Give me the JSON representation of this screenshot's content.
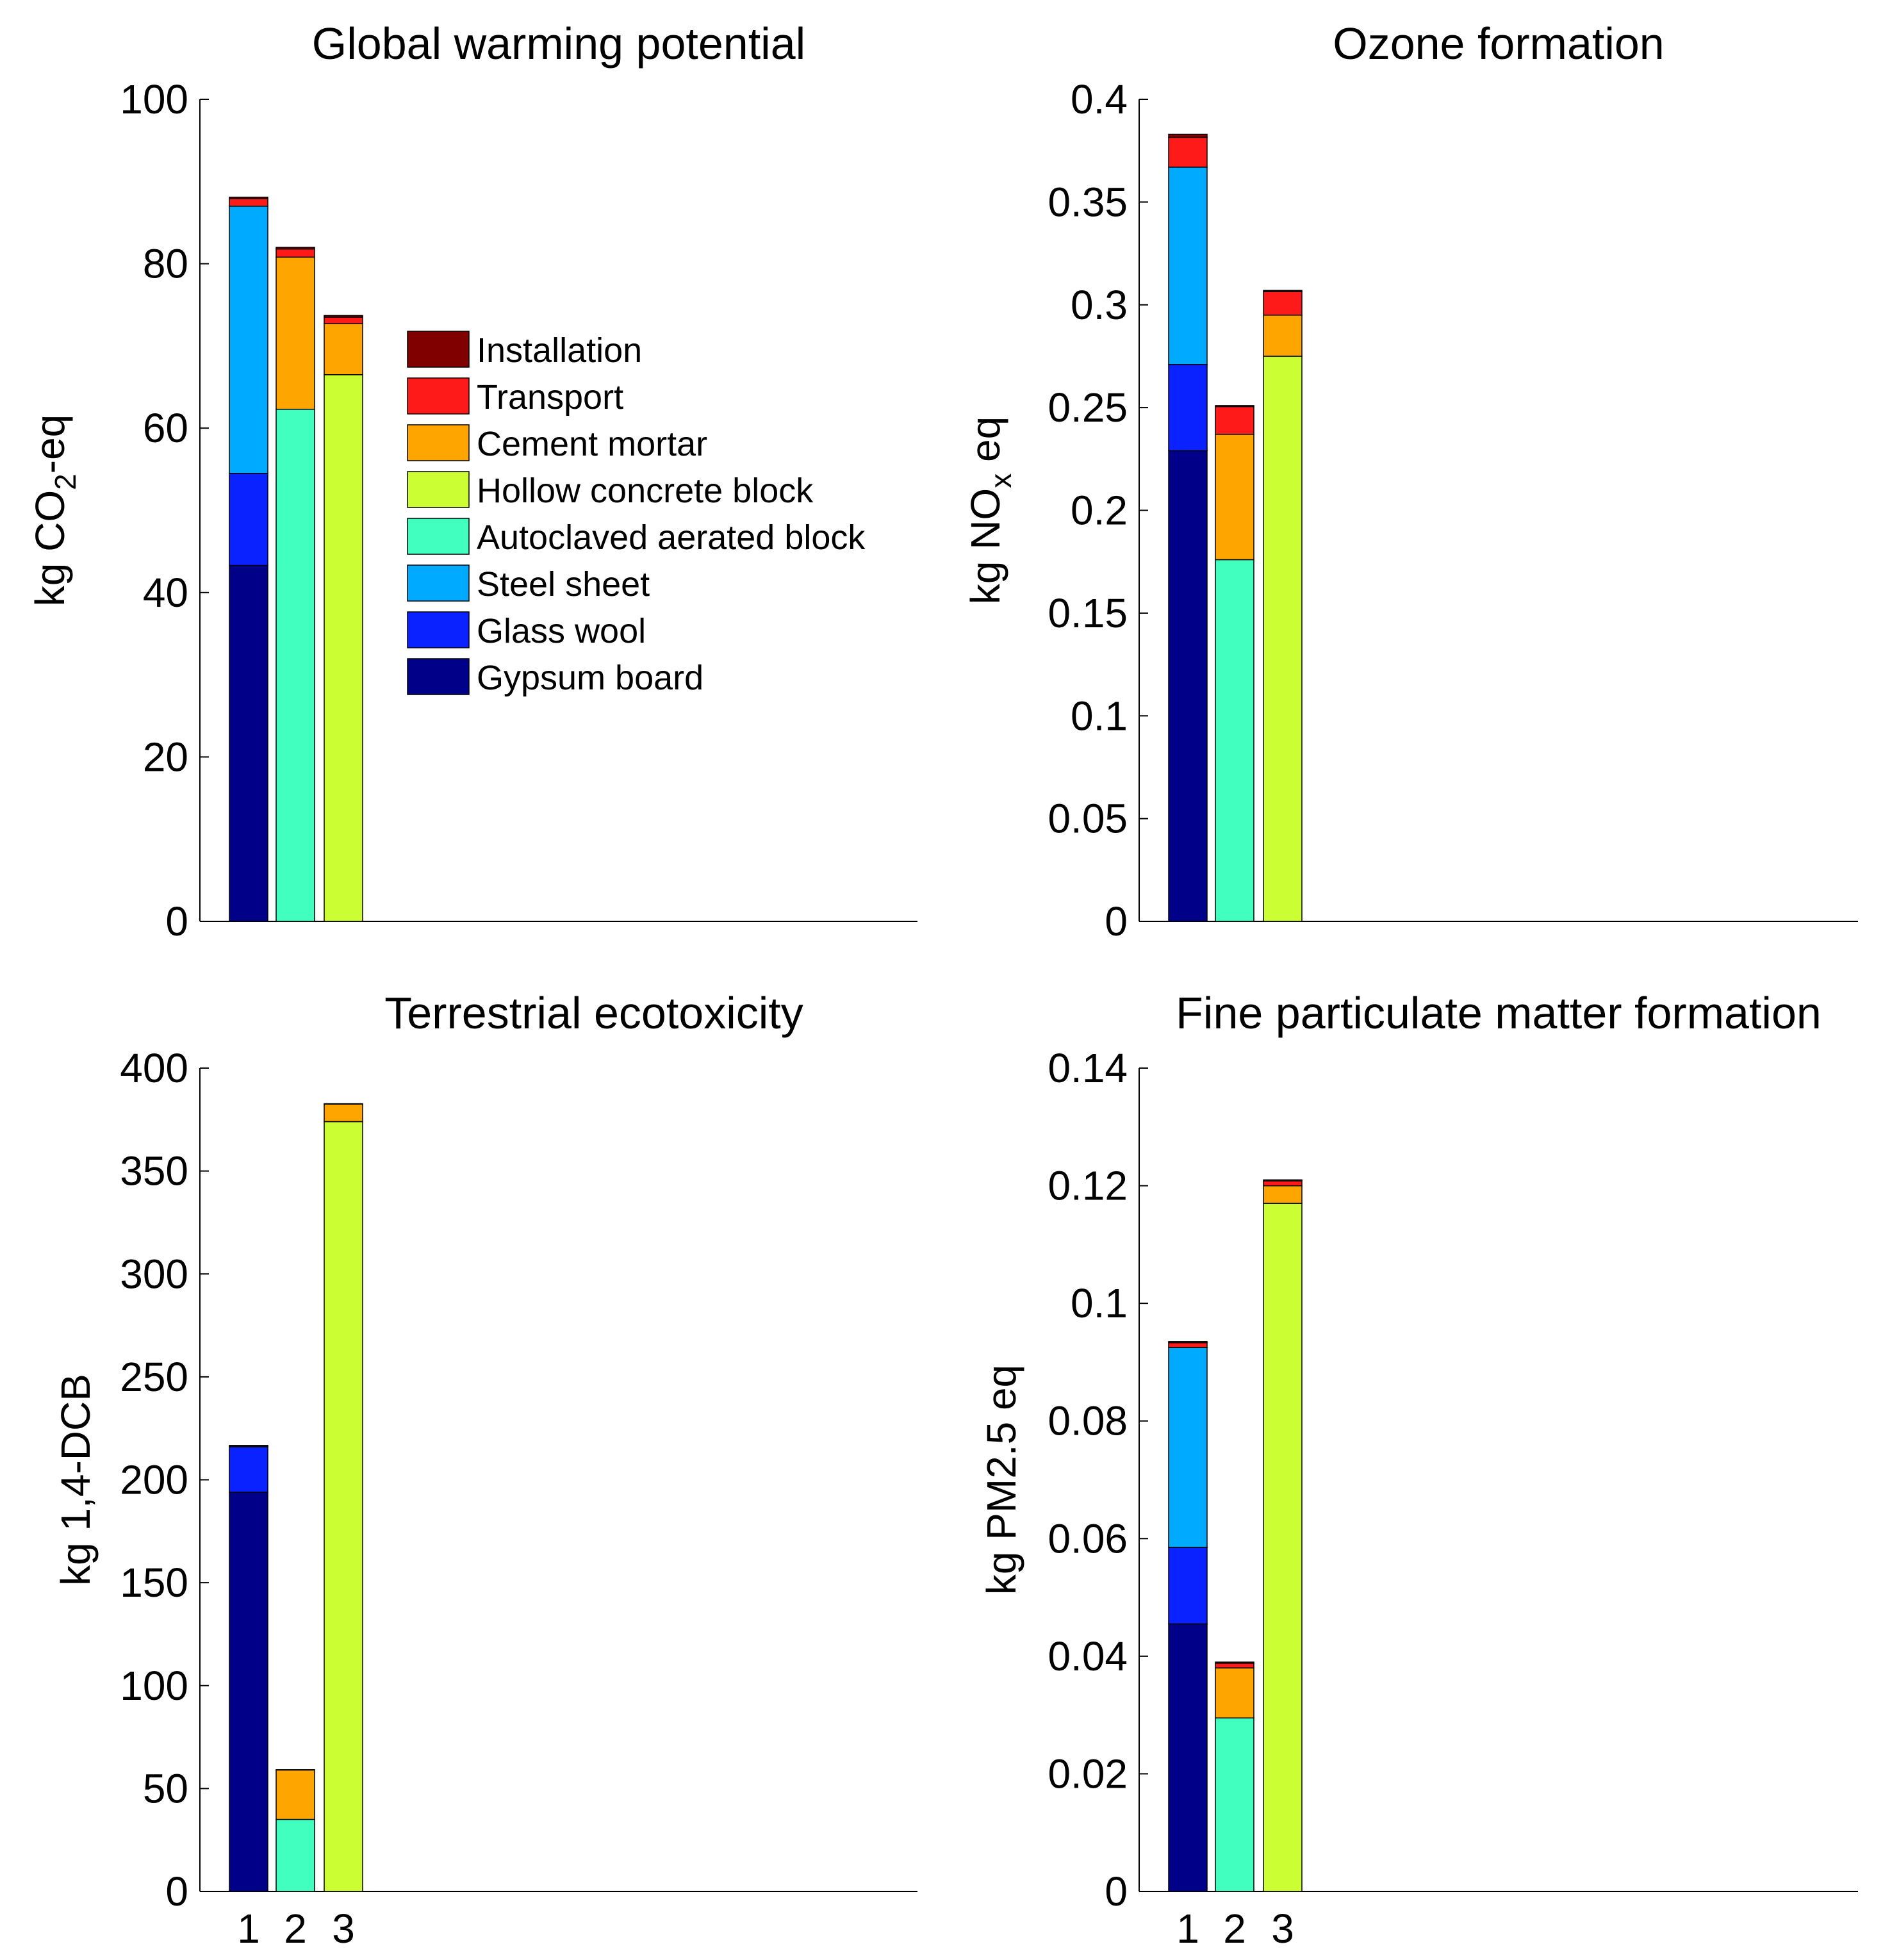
{
  "colors": {
    "Installation": "#800000",
    "Transport": "#ff1a1a",
    "Cement mortar": "#ffa500",
    "Hollow concrete block": "#ccff33",
    "Autoclaved aerated block": "#40ffbf",
    "Steel sheet": "#00aaff",
    "Glass wool": "#0a22ff",
    "Gypsum board": "#000088"
  },
  "legend": {
    "entries": [
      "Installation",
      "Transport",
      "Cement mortar",
      "Hollow concrete block",
      "Autoclaved aerated block",
      "Steel sheet",
      "Glass wool",
      "Gypsum board"
    ]
  },
  "chart_data": [
    {
      "type": "bar",
      "stacked": true,
      "title": "Global warming potential",
      "ylabel": "kg CO",
      "ylabel_sub": "2",
      "ylabel_tail": "-eq",
      "ylim": [
        0,
        100
      ],
      "yticks": [
        0,
        20,
        40,
        60,
        80,
        100
      ],
      "ytick_labels": [
        "0",
        "20",
        "40",
        "60",
        "80",
        "100"
      ],
      "categories": [
        "1",
        "2",
        "3"
      ],
      "show_xticks": false,
      "legend_position": "inside-upper-right",
      "series": [
        {
          "name": "Gypsum board",
          "values": [
            43.3,
            0,
            0
          ]
        },
        {
          "name": "Glass wool",
          "values": [
            11.2,
            0,
            0
          ]
        },
        {
          "name": "Steel sheet",
          "values": [
            32.5,
            0,
            0
          ]
        },
        {
          "name": "Autoclaved aerated block",
          "values": [
            0,
            62.3,
            0
          ]
        },
        {
          "name": "Hollow concrete block",
          "values": [
            0,
            0,
            66.5
          ]
        },
        {
          "name": "Cement mortar",
          "values": [
            0,
            18.5,
            6.2
          ]
        },
        {
          "name": "Transport",
          "values": [
            0.9,
            1.0,
            0.8
          ]
        },
        {
          "name": "Installation",
          "values": [
            0.2,
            0.2,
            0.2
          ]
        }
      ]
    },
    {
      "type": "bar",
      "stacked": true,
      "title": "Ozone formation",
      "ylabel": "kg NO",
      "ylabel_sub": "x",
      "ylabel_tail": " eq",
      "ylim": [
        0,
        0.4
      ],
      "yticks": [
        0,
        0.05,
        0.1,
        0.15,
        0.2,
        0.25,
        0.3,
        0.35,
        0.4
      ],
      "ytick_labels": [
        "0",
        "0.05",
        "0.1",
        "0.15",
        "0.2",
        "0.25",
        "0.3",
        "0.35",
        "0.4"
      ],
      "categories": [
        "1",
        "2",
        "3"
      ],
      "show_xticks": false,
      "series": [
        {
          "name": "Gypsum board",
          "values": [
            0.229,
            0,
            0
          ]
        },
        {
          "name": "Glass wool",
          "values": [
            0.042,
            0,
            0
          ]
        },
        {
          "name": "Steel sheet",
          "values": [
            0.096,
            0,
            0
          ]
        },
        {
          "name": "Autoclaved aerated block",
          "values": [
            0,
            0.176,
            0
          ]
        },
        {
          "name": "Hollow concrete block",
          "values": [
            0,
            0,
            0.275
          ]
        },
        {
          "name": "Cement mortar",
          "values": [
            0,
            0.061,
            0.02
          ]
        },
        {
          "name": "Transport",
          "values": [
            0.0145,
            0.0135,
            0.0115
          ]
        },
        {
          "name": "Installation",
          "values": [
            0.0015,
            0.0005,
            0.0005
          ]
        }
      ]
    },
    {
      "type": "bar",
      "stacked": true,
      "title": "Terrestrial ecotoxicity",
      "ylabel": "kg 1,4-DCB",
      "ylabel_sub": "",
      "ylabel_tail": "",
      "ylim": [
        0,
        400
      ],
      "yticks": [
        0,
        50,
        100,
        150,
        200,
        250,
        300,
        350,
        400
      ],
      "ytick_labels": [
        "0",
        "50",
        "100",
        "150",
        "200",
        "250",
        "300",
        "350",
        "400"
      ],
      "categories": [
        "1",
        "2",
        "3"
      ],
      "show_xticks": true,
      "series": [
        {
          "name": "Gypsum board",
          "values": [
            194,
            0,
            0
          ]
        },
        {
          "name": "Glass wool",
          "values": [
            22,
            0,
            0
          ]
        },
        {
          "name": "Steel sheet",
          "values": [
            0.5,
            0,
            0
          ]
        },
        {
          "name": "Autoclaved aerated block",
          "values": [
            0,
            35,
            0
          ]
        },
        {
          "name": "Hollow concrete block",
          "values": [
            0,
            0,
            374
          ]
        },
        {
          "name": "Cement mortar",
          "values": [
            0,
            24,
            8.5
          ]
        },
        {
          "name": "Transport",
          "values": [
            0.2,
            0.2,
            0.2
          ]
        },
        {
          "name": "Installation",
          "values": [
            0,
            0,
            0
          ]
        }
      ]
    },
    {
      "type": "bar",
      "stacked": true,
      "title": "Fine particulate matter formation",
      "ylabel": "kg PM2.5 eq",
      "ylabel_sub": "",
      "ylabel_tail": "",
      "ylim": [
        0,
        0.14
      ],
      "yticks": [
        0,
        0.02,
        0.04,
        0.06,
        0.08,
        0.1,
        0.12,
        0.14
      ],
      "ytick_labels": [
        "0",
        "0.02",
        "0.04",
        "0.06",
        "0.08",
        "0.1",
        "0.12",
        "0.14"
      ],
      "categories": [
        "1",
        "2",
        "3"
      ],
      "show_xticks": true,
      "series": [
        {
          "name": "Gypsum board",
          "values": [
            0.0455,
            0,
            0
          ]
        },
        {
          "name": "Glass wool",
          "values": [
            0.013,
            0,
            0
          ]
        },
        {
          "name": "Steel sheet",
          "values": [
            0.034,
            0,
            0
          ]
        },
        {
          "name": "Autoclaved aerated block",
          "values": [
            0,
            0.0295,
            0
          ]
        },
        {
          "name": "Hollow concrete block",
          "values": [
            0,
            0,
            0.117
          ]
        },
        {
          "name": "Cement mortar",
          "values": [
            0,
            0.0085,
            0.003
          ]
        },
        {
          "name": "Transport",
          "values": [
            0.0008,
            0.0008,
            0.0008
          ]
        },
        {
          "name": "Installation",
          "values": [
            0.0002,
            0.0002,
            0.0002
          ]
        }
      ]
    }
  ]
}
